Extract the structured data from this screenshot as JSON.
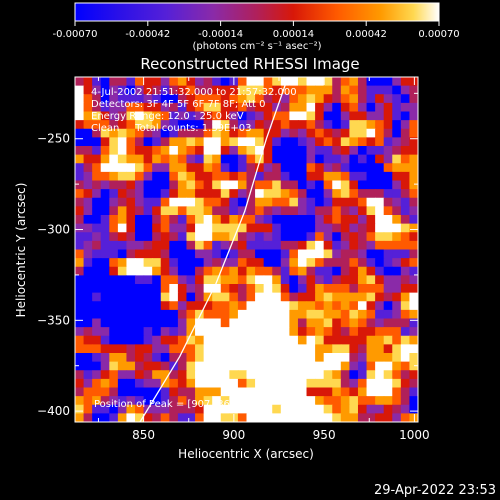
{
  "colorbar": {
    "tick_labels": [
      "-0.00070",
      "-0.00042",
      "-0.00014",
      "0.00014",
      "0.00042",
      "0.00070"
    ],
    "tick_values": [
      -0.0007,
      -0.00042,
      -0.00014,
      0.00014,
      0.00042,
      0.0007
    ],
    "range": [
      -0.0007,
      0.0007
    ],
    "unit_label": "(photons cm⁻² s⁻¹ asec⁻²)"
  },
  "chart_data": {
    "type": "heatmap",
    "title": "Reconstructed RHESSI Image",
    "xlabel": "Heliocentric X (arcsec)",
    "ylabel": "Heliocentric Y (arcsec)",
    "xlim": [
      812,
      1002
    ],
    "ylim": [
      -406,
      -216
    ],
    "x_ticks": [
      850,
      900,
      950,
      1000
    ],
    "y_ticks": [
      -250,
      -300,
      -350,
      -400
    ],
    "annotations": [
      "4-Jul-2002 21:51:32.000 to 21:57:32.000",
      "Detectors: 3F 4F 5F 6F 7F 8F; Att 0",
      "Energy Range: 12.0 - 25.0 keV",
      "Clean     Total counts: 1.39E+03"
    ],
    "peak_label": "Position of Peak = [907,-368]",
    "peak": [
      907,
      -368
    ],
    "limb_curve": [
      [
        848,
        -406
      ],
      [
        870,
        -370
      ],
      [
        890,
        -330
      ],
      [
        906,
        -290
      ],
      [
        918,
        -250
      ],
      [
        930,
        -216
      ]
    ]
  },
  "footer": {
    "timestamp": "29-Apr-2022 23:53"
  },
  "colors": {
    "background": "#000000",
    "text": "#ffffff",
    "limb": "#ffffff"
  },
  "colormap": [
    "#0000ff",
    "#5520d8",
    "#8a2aa8",
    "#b0205a",
    "#d81808",
    "#ff5a00",
    "#ff9a00",
    "#ffd850",
    "#ffffff"
  ]
}
